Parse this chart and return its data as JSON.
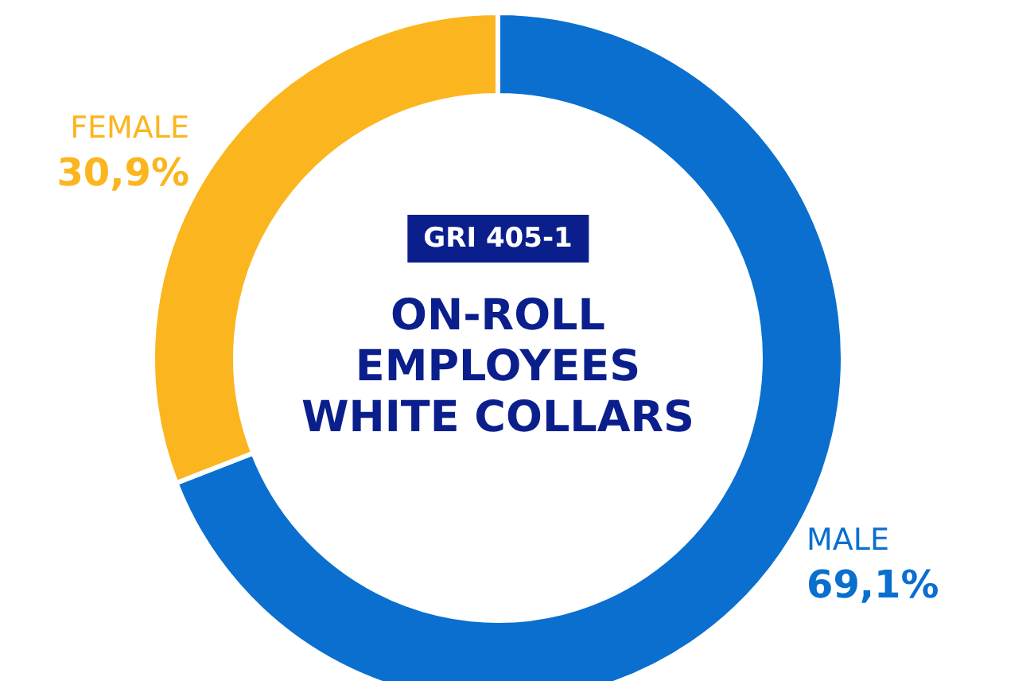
{
  "chart_data": {
    "type": "donut",
    "title": "ON-ROLL EMPLOYEES WHITE COLLARS",
    "subtitle": "GRI 405-1",
    "categories": [
      "MALE",
      "FEMALE"
    ],
    "values": [
      69.1,
      30.9
    ],
    "colors": [
      "#0a6fce",
      "#fbb51f"
    ],
    "value_labels": [
      "69,1%",
      "30,9%"
    ],
    "legend": false
  }
}
